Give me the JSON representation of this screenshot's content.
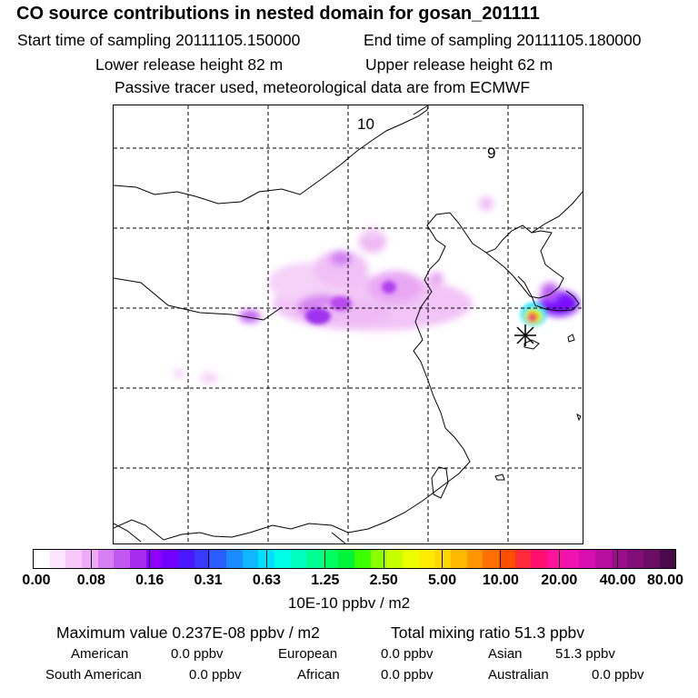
{
  "header": {
    "title": "CO  source contributions in nested domain for gosan_201111",
    "start_label": "Start time of sampling 20111105.150000",
    "end_label": "End time of sampling 20111105.180000",
    "lower_label": "Lower release height   82 m",
    "upper_label": "Upper release height   62 m",
    "tracer_note": "Passive tracer used, meteorological data are from ECMWF"
  },
  "chart_data": {
    "type": "heatmap",
    "map_labels": [
      "10",
      "9"
    ],
    "colorbar": {
      "colors": [
        "#ffffff",
        "#fde6fd",
        "#f7c8fa",
        "#eeaaf6",
        "#d97ef3",
        "#c258f1",
        "#a82cef",
        "#8f00ff",
        "#7000ff",
        "#4a17ff",
        "#3a3aff",
        "#2a5cff",
        "#1a8cff",
        "#10b6ff",
        "#00e0ff",
        "#00ffe6",
        "#00ffc0",
        "#00ff90",
        "#00ff60",
        "#00f53a",
        "#3cff00",
        "#8cff00",
        "#c8ff00",
        "#ecff00",
        "#ffec00",
        "#ffd700",
        "#ffba00",
        "#ff9500",
        "#ff6e00",
        "#ff4e00",
        "#ff2a3a",
        "#ff0f6e",
        "#ff12a0",
        "#f012b0",
        "#d80fb0",
        "#b80fa0",
        "#9a0e8c",
        "#800e78",
        "#6a0d64",
        "#4c0848"
      ],
      "tick_labels": [
        "0.00",
        "0.08",
        "0.16",
        "0.31",
        "0.63",
        "1.25",
        "2.50",
        "5.00",
        "10.00",
        "20.00",
        "40.00",
        "80.00"
      ],
      "units": "10E-10 ppbv / m2"
    },
    "maximum_value": "Maximum value  0.237E-08 ppbv / m2",
    "total_mixing_ratio": "Total mixing ratio      51.3 ppbv",
    "contributions": [
      {
        "label": "American",
        "value": "0.0 ppbv"
      },
      {
        "label": "European",
        "value": "0.0 ppbv"
      },
      {
        "label": "Asian",
        "value": "51.3 ppbv"
      },
      {
        "label": "South American",
        "value": "0.0 ppbv"
      },
      {
        "label": "African",
        "value": "0.0 ppbv"
      },
      {
        "label": "Australian",
        "value": "0.0 ppbv"
      }
    ]
  }
}
